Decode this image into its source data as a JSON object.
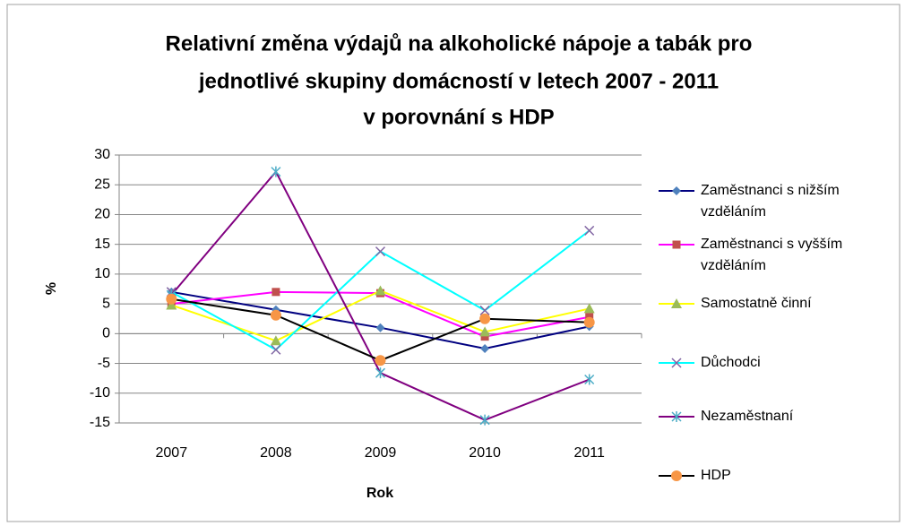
{
  "chart_data": {
    "type": "line",
    "title": [
      "Relativní změna výdajů na alkoholické nápoje a tabák pro",
      "jednotlivé skupiny domácností v letech 2007 - 2011",
      "v porovnání s HDP"
    ],
    "x_label": "Rok",
    "y_label": "%",
    "categories": [
      "2007",
      "2008",
      "2009",
      "2010",
      "2011"
    ],
    "ylim": [
      -15,
      30
    ],
    "yticks": [
      -15,
      -10,
      -5,
      0,
      5,
      10,
      15,
      20,
      25,
      30
    ],
    "grid": true,
    "legend": "right",
    "series": [
      {
        "name": "Zaměstnanci s nižším vzděláním",
        "color": "#000080",
        "marker": "diamond",
        "marker_color": "#4f81bd",
        "values": [
          7,
          4,
          1,
          -2.5,
          1.2
        ]
      },
      {
        "name": "Zaměstnanci s vyšším vzděláním",
        "color": "#ff00ff",
        "marker": "square",
        "marker_color": "#c0504d",
        "values": [
          5,
          7,
          6.8,
          -0.5,
          2.8
        ]
      },
      {
        "name": "Samostatně činní",
        "color": "#ffff00",
        "marker": "triangle",
        "marker_color": "#9bbb59",
        "values": [
          4.8,
          -1.2,
          7.2,
          0.3,
          4.2
        ]
      },
      {
        "name": "Důchodci",
        "color": "#00ffff",
        "marker": "x",
        "marker_color": "#8064a2",
        "values": [
          7,
          -2.7,
          13.8,
          3.9,
          17.3
        ]
      },
      {
        "name": "Nezaměstnaní",
        "color": "#800080",
        "marker": "star",
        "marker_color": "#4bacc6",
        "values": [
          6.5,
          27.2,
          -6.6,
          -14.5,
          -7.7
        ]
      },
      {
        "name": "HDP",
        "color": "#000000",
        "marker": "circle",
        "marker_color": "#f79646",
        "values": [
          5.8,
          3.1,
          -4.5,
          2.5,
          1.9
        ]
      }
    ]
  }
}
